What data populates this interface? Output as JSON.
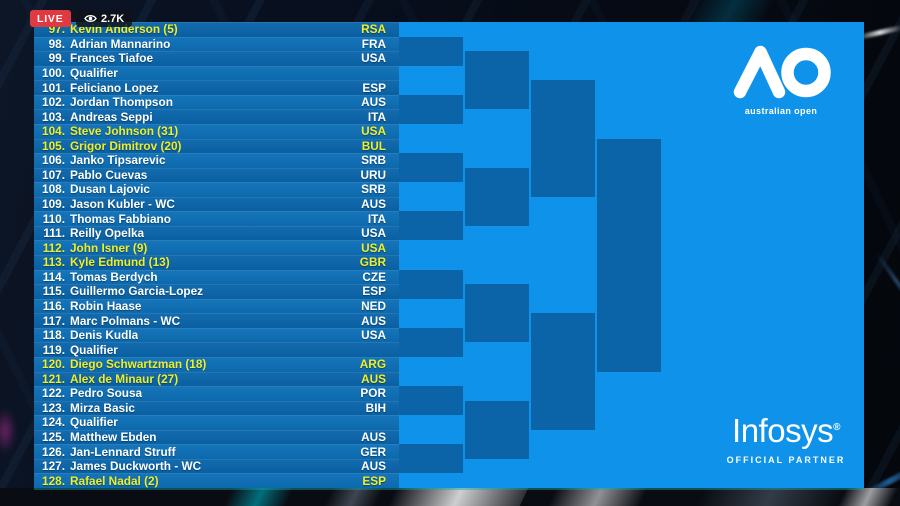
{
  "badges": {
    "live_label": "LIVE",
    "viewer_count": "2.7K",
    "viewer_icon": "eye-icon"
  },
  "players": [
    {
      "num": "97.",
      "name": "Kevin Anderson (5)",
      "country": "RSA",
      "seeded": true
    },
    {
      "num": "98.",
      "name": "Adrian Mannarino",
      "country": "FRA",
      "seeded": false
    },
    {
      "num": "99.",
      "name": "Frances Tiafoe",
      "country": "USA",
      "seeded": false
    },
    {
      "num": "100.",
      "name": "Qualifier",
      "country": "",
      "seeded": false
    },
    {
      "num": "101.",
      "name": "Feliciano Lopez",
      "country": "ESP",
      "seeded": false
    },
    {
      "num": "102.",
      "name": "Jordan Thompson",
      "country": "AUS",
      "seeded": false
    },
    {
      "num": "103.",
      "name": "Andreas Seppi",
      "country": "ITA",
      "seeded": false
    },
    {
      "num": "104.",
      "name": "Steve Johnson (31)",
      "country": "USA",
      "seeded": true
    },
    {
      "num": "105.",
      "name": "Grigor Dimitrov (20)",
      "country": "BUL",
      "seeded": true
    },
    {
      "num": "106.",
      "name": "Janko Tipsarevic",
      "country": "SRB",
      "seeded": false
    },
    {
      "num": "107.",
      "name": "Pablo Cuevas",
      "country": "URU",
      "seeded": false
    },
    {
      "num": "108.",
      "name": "Dusan Lajovic",
      "country": "SRB",
      "seeded": false
    },
    {
      "num": "109.",
      "name": "Jason Kubler - WC",
      "country": "AUS",
      "seeded": false
    },
    {
      "num": "110.",
      "name": "Thomas Fabbiano",
      "country": "ITA",
      "seeded": false
    },
    {
      "num": "111.",
      "name": "Reilly Opelka",
      "country": "USA",
      "seeded": false
    },
    {
      "num": "112.",
      "name": "John Isner (9)",
      "country": "USA",
      "seeded": true
    },
    {
      "num": "113.",
      "name": "Kyle Edmund (13)",
      "country": "GBR",
      "seeded": true
    },
    {
      "num": "114.",
      "name": "Tomas Berdych",
      "country": "CZE",
      "seeded": false
    },
    {
      "num": "115.",
      "name": "Guillermo Garcia-Lopez",
      "country": "ESP",
      "seeded": false
    },
    {
      "num": "116.",
      "name": "Robin Haase",
      "country": "NED",
      "seeded": false
    },
    {
      "num": "117.",
      "name": "Marc Polmans - WC",
      "country": "AUS",
      "seeded": false
    },
    {
      "num": "118.",
      "name": "Denis Kudla",
      "country": "USA",
      "seeded": false
    },
    {
      "num": "119.",
      "name": "Qualifier",
      "country": "",
      "seeded": false
    },
    {
      "num": "120.",
      "name": "Diego Schwartzman (18)",
      "country": "ARG",
      "seeded": true
    },
    {
      "num": "121.",
      "name": "Alex de Minaur (27)",
      "country": "AUS",
      "seeded": true
    },
    {
      "num": "122.",
      "name": "Pedro Sousa",
      "country": "POR",
      "seeded": false
    },
    {
      "num": "123.",
      "name": "Mirza Basic",
      "country": "BIH",
      "seeded": false
    },
    {
      "num": "124.",
      "name": "Qualifier",
      "country": "",
      "seeded": false
    },
    {
      "num": "125.",
      "name": "Matthew Ebden",
      "country": "AUS",
      "seeded": false
    },
    {
      "num": "126.",
      "name": "Jan-Lennard Struff",
      "country": "GER",
      "seeded": false
    },
    {
      "num": "127.",
      "name": "James Duckworth - WC",
      "country": "AUS",
      "seeded": false
    },
    {
      "num": "128.",
      "name": "Rafael Nadal (2)",
      "country": "ESP",
      "seeded": true
    }
  ],
  "bracket": {
    "entrants": 32,
    "rounds": 4
  },
  "logos": {
    "ao_text": "australian open",
    "partner_name": "Infosys",
    "partner_reg": "®",
    "partner_label": "OFFICIAL PARTNER"
  },
  "colors": {
    "list_row_a": "#0a65aa",
    "list_row_b": "#0d6fb6",
    "bracket_bg": "#0e92ea",
    "bracket_block": "#0c64a8",
    "seed_yellow": "#f0ee28",
    "player_white": "#ffffff",
    "live_red": "#e0393f",
    "badge_dark": "rgba(15,18,24,0.8)"
  }
}
